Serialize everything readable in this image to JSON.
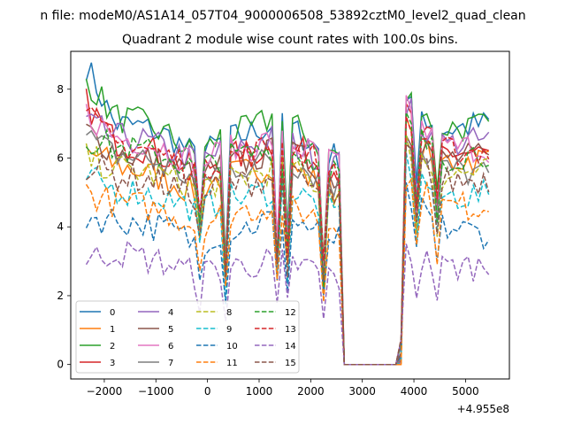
{
  "figure": {
    "suptitle": "n file: modeM0/AS1A14_057T04_9000006508_53892cztM0_level2_quad_clean",
    "title": "Quadrant 2 module wise count rates with 100.0s bins.",
    "offset_text": "+4.955e8"
  },
  "chart_data": {
    "type": "line",
    "title": "Quadrant 2 module wise count rates with 100.0s bins.",
    "xlabel": "",
    "ylabel": "",
    "x_offset": 495500000,
    "xlim": [
      -2650,
      5850
    ],
    "ylim": [
      -0.42,
      9.1
    ],
    "xticks": [
      -2000,
      -1000,
      0,
      1000,
      2000,
      3000,
      4000,
      5000
    ],
    "yticks": [
      0,
      2,
      4,
      6,
      8
    ],
    "grid": false,
    "legend": {
      "placement": "lower left",
      "columns": 4
    },
    "x_range": [
      -2350,
      5450
    ],
    "x_step": 100,
    "gap": [
      2650,
      3750
    ],
    "series": [
      {
        "name": "0",
        "color": "#1f77b4",
        "dash": "solid",
        "profile": [
          8.7,
          7.0,
          6.9,
          6.6,
          6.0,
          6.5,
          6.7,
          7.0,
          6.7,
          6.2,
          6.0,
          0.0,
          7.8,
          6.8,
          7.0
        ]
      },
      {
        "name": "1",
        "color": "#ff7f0e",
        "dash": "solid",
        "profile": [
          6.2,
          5.8,
          5.6,
          5.3,
          5.0,
          5.5,
          5.6,
          5.8,
          5.6,
          5.2,
          5.0,
          0.0,
          6.8,
          5.9,
          6.0
        ]
      },
      {
        "name": "2",
        "color": "#2ca02c",
        "dash": "solid",
        "profile": [
          8.3,
          7.2,
          7.0,
          6.6,
          6.0,
          6.7,
          6.8,
          7.2,
          6.8,
          6.3,
          6.1,
          0.0,
          7.8,
          6.9,
          6.9
        ]
      },
      {
        "name": "3",
        "color": "#d62728",
        "dash": "solid",
        "profile": [
          7.6,
          6.5,
          6.3,
          6.0,
          5.6,
          6.0,
          6.1,
          6.4,
          6.2,
          5.8,
          5.6,
          0.0,
          7.2,
          6.2,
          6.1
        ]
      },
      {
        "name": "4",
        "color": "#9467bd",
        "dash": "solid",
        "profile": [
          7.0,
          6.6,
          6.5,
          6.2,
          5.9,
          6.2,
          6.4,
          6.6,
          6.3,
          6.0,
          5.8,
          0.0,
          7.5,
          6.4,
          6.5
        ]
      },
      {
        "name": "5",
        "color": "#8c564b",
        "dash": "solid",
        "profile": [
          6.8,
          6.2,
          6.0,
          5.8,
          5.5,
          5.8,
          5.9,
          6.2,
          6.0,
          5.6,
          5.4,
          0.0,
          6.9,
          6.0,
          6.0
        ]
      },
      {
        "name": "6",
        "color": "#e377c2",
        "dash": "solid",
        "profile": [
          7.3,
          6.6,
          6.5,
          6.2,
          5.8,
          6.2,
          6.3,
          6.6,
          6.3,
          6.0,
          5.8,
          0.0,
          7.4,
          6.3,
          6.3
        ]
      },
      {
        "name": "7",
        "color": "#7f7f7f",
        "dash": "solid",
        "profile": [
          6.6,
          6.1,
          6.0,
          5.7,
          5.3,
          5.7,
          5.8,
          6.0,
          5.8,
          5.4,
          5.2,
          0.0,
          6.7,
          5.7,
          5.5
        ]
      },
      {
        "name": "8",
        "color": "#bcbd22",
        "dash": "dashed",
        "profile": [
          6.0,
          5.7,
          5.6,
          5.4,
          5.1,
          5.4,
          5.5,
          5.7,
          5.5,
          5.2,
          5.0,
          0.0,
          6.4,
          5.5,
          5.6
        ]
      },
      {
        "name": "9",
        "color": "#17becf",
        "dash": "dashed",
        "profile": [
          5.4,
          5.1,
          5.0,
          4.8,
          4.5,
          4.8,
          4.9,
          5.1,
          4.9,
          4.6,
          4.4,
          0.0,
          5.8,
          4.9,
          4.9
        ]
      },
      {
        "name": "10",
        "color": "#1f77b4",
        "dash": "dashed",
        "profile": [
          4.3,
          4.2,
          4.1,
          3.9,
          3.5,
          3.9,
          4.0,
          4.3,
          4.1,
          3.8,
          3.6,
          0.0,
          4.9,
          4.0,
          3.8
        ]
      },
      {
        "name": "11",
        "color": "#ff7f0e",
        "dash": "dashed",
        "profile": [
          5.0,
          4.7,
          4.6,
          4.4,
          4.0,
          4.4,
          4.5,
          4.7,
          4.5,
          4.2,
          4.0,
          0.0,
          5.4,
          4.6,
          4.6
        ]
      },
      {
        "name": "12",
        "color": "#2ca02c",
        "dash": "dashed",
        "profile": [
          6.6,
          6.3,
          6.2,
          6.0,
          5.6,
          6.0,
          6.1,
          6.3,
          6.1,
          5.8,
          5.6,
          0.0,
          7.0,
          6.0,
          6.2
        ]
      },
      {
        "name": "13",
        "color": "#d62728",
        "dash": "dashed",
        "profile": [
          7.2,
          6.4,
          6.3,
          6.0,
          5.7,
          6.0,
          6.1,
          6.4,
          6.2,
          5.9,
          5.7,
          0.0,
          7.1,
          6.2,
          6.2
        ]
      },
      {
        "name": "14",
        "color": "#9467bd",
        "dash": "dashed",
        "profile": [
          3.0,
          3.3,
          3.1,
          2.9,
          2.6,
          2.8,
          2.9,
          3.0,
          2.9,
          2.7,
          2.5,
          0.0,
          3.3,
          2.8,
          2.9
        ]
      },
      {
        "name": "15",
        "color": "#8c564b",
        "dash": "dashed",
        "profile": [
          5.8,
          5.5,
          5.4,
          5.2,
          4.9,
          5.2,
          5.3,
          5.5,
          5.3,
          5.0,
          4.8,
          0.0,
          6.2,
          5.3,
          5.4
        ]
      }
    ],
    "profile_x": [
      -2350,
      -1800,
      -1250,
      -700,
      -200,
      300,
      800,
      1300,
      1800,
      2200,
      2550,
      3200,
      3850,
      4500,
      5450
    ],
    "dips": [
      {
        "x": -150,
        "factor": 0.7
      },
      {
        "x": 350,
        "factor": 0.45
      },
      {
        "x": 1350,
        "factor": 0.5
      },
      {
        "x": 1550,
        "factor": 0.55
      },
      {
        "x": 2250,
        "factor": 0.45
      },
      {
        "x": 4050,
        "factor": 0.65
      },
      {
        "x": 4450,
        "factor": 0.7
      }
    ]
  }
}
